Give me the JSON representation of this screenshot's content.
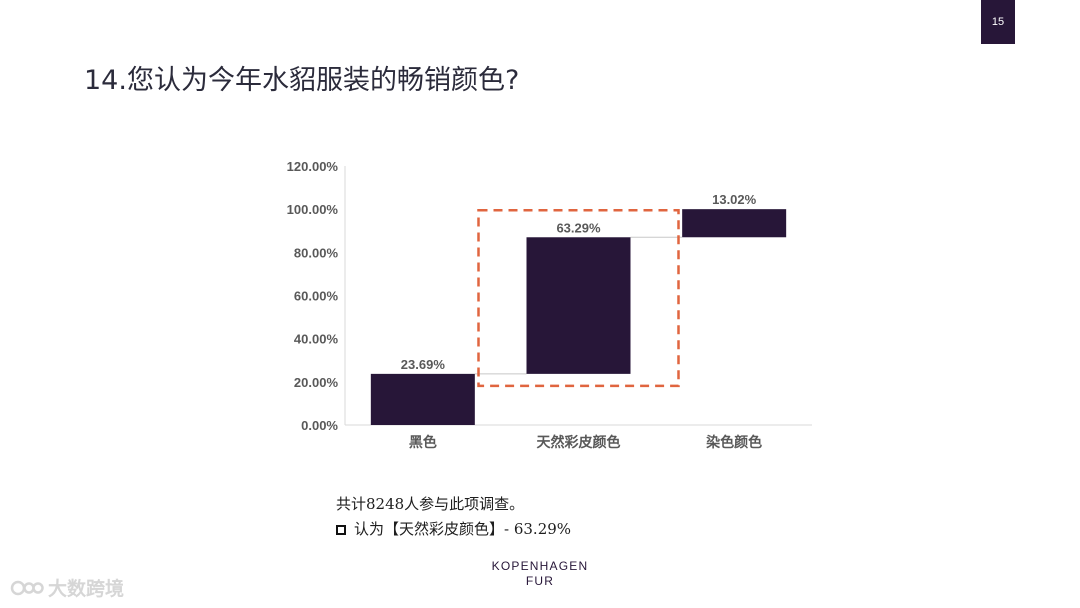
{
  "page_number": "15",
  "title": "14.您认为今年水貂服装的畅销颜色?",
  "chart_data": {
    "type": "waterfall",
    "categories": [
      "黑色",
      "天然彩皮颜色",
      "染色颜色"
    ],
    "values": [
      23.69,
      63.29,
      13.02
    ],
    "data_labels": [
      "23.69%",
      "63.29%",
      "13.02%"
    ],
    "y_ticks": [
      "120.00%",
      "100.00%",
      "80.00%",
      "60.00%",
      "40.00%",
      "20.00%",
      "0.00%"
    ],
    "ylim": [
      0,
      120
    ],
    "highlight_category": "天然彩皮颜色",
    "bar_color": "#271638",
    "connector_color": "#c8c8c8",
    "highlight_color": "#e0653f",
    "grid": false
  },
  "notes": {
    "line1": "共计8248人参与此项调查。",
    "line2": "认为【天然彩皮颜色】- 63.29%"
  },
  "brand": {
    "line1": "KOPENHAGEN",
    "line2": "FUR"
  },
  "watermark": {
    "text": "大数跨境"
  }
}
